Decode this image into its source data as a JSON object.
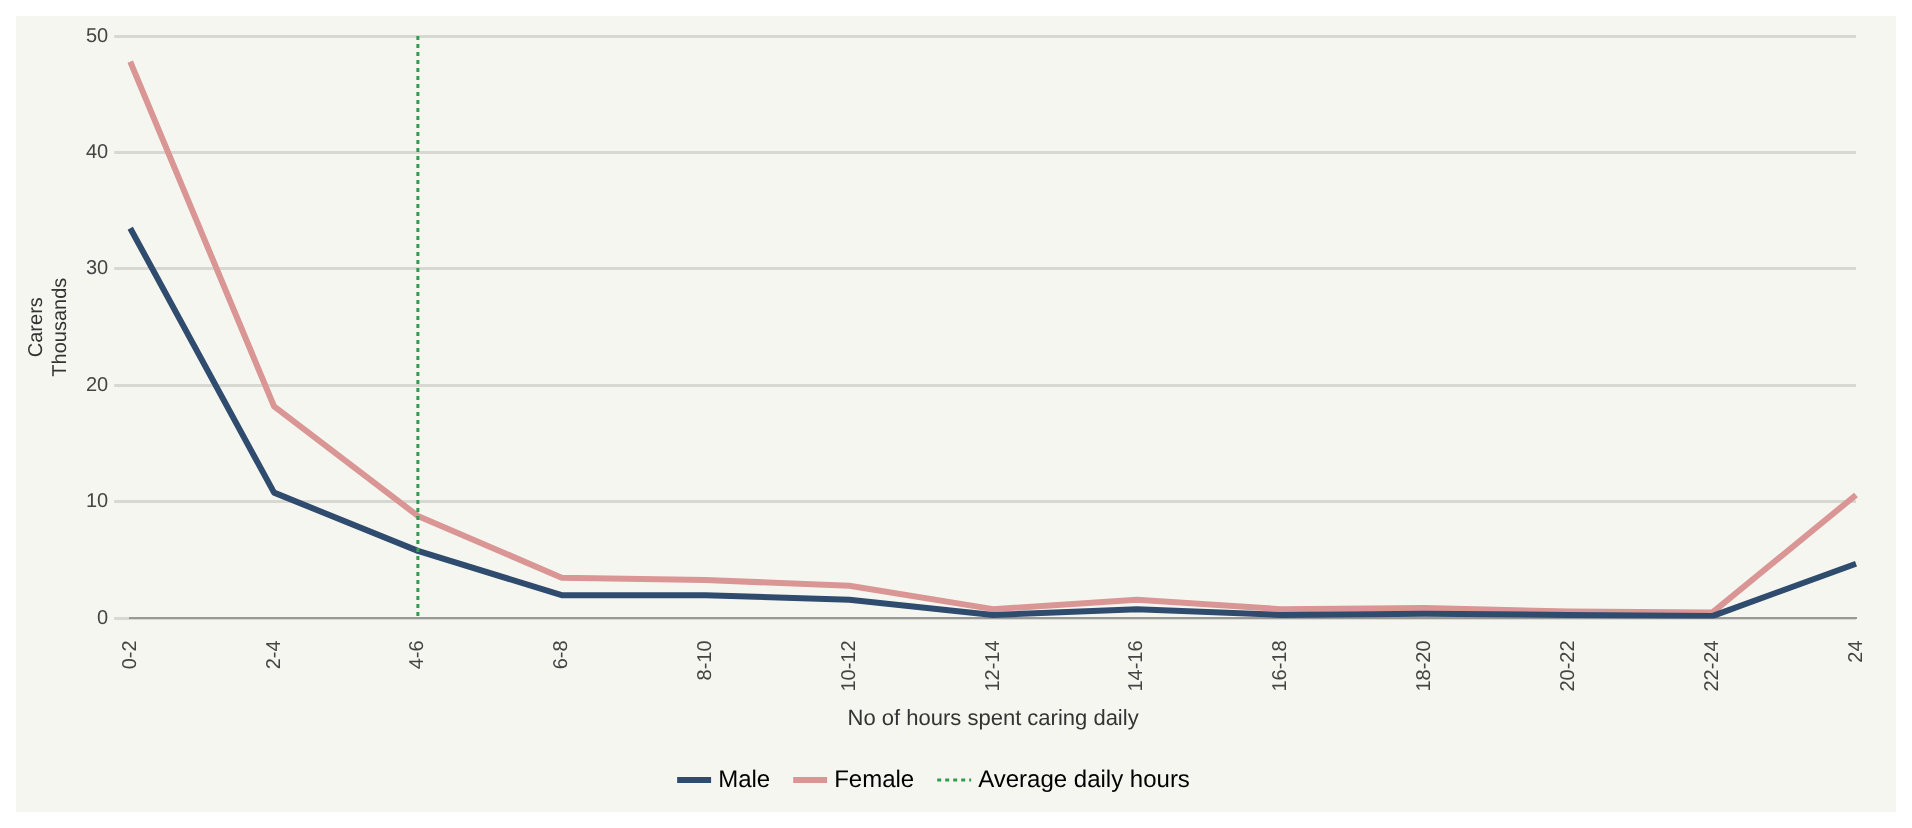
{
  "chart_data": {
    "type": "line",
    "xlabel": "No of hours spent caring daily",
    "ylabel": "Carers\nThousands",
    "categories": [
      "0-2",
      "2-4",
      "4-6",
      "6-8",
      "8-10",
      "10-12",
      "12-14",
      "14-16",
      "16-18",
      "18-20",
      "20-22",
      "22-24",
      "24"
    ],
    "series": [
      {
        "name": "Male",
        "color": "#2f4b6e",
        "values": [
          33.5,
          10.8,
          5.8,
          2,
          2,
          1.6,
          0.3,
          0.8,
          0.3,
          0.4,
          0.3,
          0.2,
          4.7
        ]
      },
      {
        "name": "Female",
        "color": "#d99694",
        "values": [
          47.8,
          18.2,
          8.8,
          3.5,
          3.3,
          2.8,
          0.8,
          1.6,
          0.8,
          0.9,
          0.6,
          0.5,
          10.6
        ]
      }
    ],
    "ref_lines": [
      {
        "axis": "x",
        "value": "4-6",
        "label": "Average daily hours",
        "color": "#2e9e50",
        "line_style": "dotted"
      }
    ],
    "ylim": [
      0,
      50
    ],
    "yticks": [
      0,
      10,
      20,
      30,
      40,
      50
    ],
    "grid": "y",
    "legend": "bottom",
    "marker": "none",
    "line_style": "solid"
  }
}
